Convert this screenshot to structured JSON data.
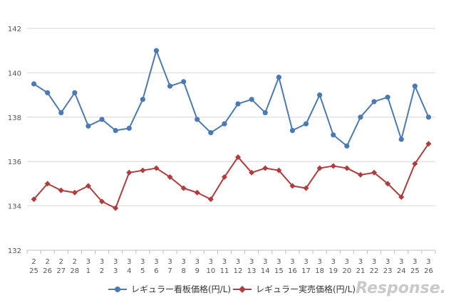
{
  "chart_data": {
    "type": "line",
    "categories": [
      [
        "2",
        "25"
      ],
      [
        "2",
        "26"
      ],
      [
        "2",
        "27"
      ],
      [
        "2",
        "28"
      ],
      [
        "3",
        "1"
      ],
      [
        "3",
        "2"
      ],
      [
        "3",
        "3"
      ],
      [
        "3",
        "4"
      ],
      [
        "3",
        "5"
      ],
      [
        "3",
        "6"
      ],
      [
        "3",
        "7"
      ],
      [
        "3",
        "8"
      ],
      [
        "3",
        "9"
      ],
      [
        "3",
        "10"
      ],
      [
        "3",
        "11"
      ],
      [
        "3",
        "12"
      ],
      [
        "3",
        "13"
      ],
      [
        "3",
        "14"
      ],
      [
        "3",
        "15"
      ],
      [
        "3",
        "16"
      ],
      [
        "3",
        "17"
      ],
      [
        "3",
        "18"
      ],
      [
        "3",
        "19"
      ],
      [
        "3",
        "20"
      ],
      [
        "3",
        "21"
      ],
      [
        "3",
        "22"
      ],
      [
        "3",
        "23"
      ],
      [
        "3",
        "24"
      ],
      [
        "3",
        "25"
      ],
      [
        "3",
        "26"
      ]
    ],
    "series": [
      {
        "name": "レギュラー看板価格(円/L)",
        "color": "#4a7ab5",
        "marker": "circle",
        "values": [
          139.5,
          139.1,
          138.2,
          139.1,
          137.6,
          137.9,
          137.4,
          137.5,
          138.8,
          141.0,
          139.4,
          139.6,
          137.9,
          137.3,
          137.7,
          138.6,
          138.8,
          138.2,
          139.8,
          137.4,
          137.7,
          139.0,
          137.2,
          136.7,
          138.0,
          138.7,
          138.9,
          137.0,
          139.4,
          138.0
        ]
      },
      {
        "name": "レギュラー実売価格(円/L)",
        "color": "#b23b3b",
        "marker": "diamond",
        "values": [
          134.3,
          135.0,
          134.7,
          134.6,
          134.9,
          134.2,
          133.9,
          135.5,
          135.6,
          135.7,
          135.3,
          134.8,
          134.6,
          134.3,
          135.3,
          136.2,
          135.5,
          135.7,
          135.6,
          134.9,
          134.8,
          135.7,
          135.8,
          135.7,
          135.4,
          135.5,
          135.0,
          134.4,
          135.9,
          136.8
        ]
      }
    ],
    "yticks": [
      132,
      134,
      136,
      138,
      140,
      142
    ],
    "ylim": [
      132,
      142
    ],
    "grid": true,
    "legend_position": "bottom"
  },
  "watermark_text": "Response."
}
